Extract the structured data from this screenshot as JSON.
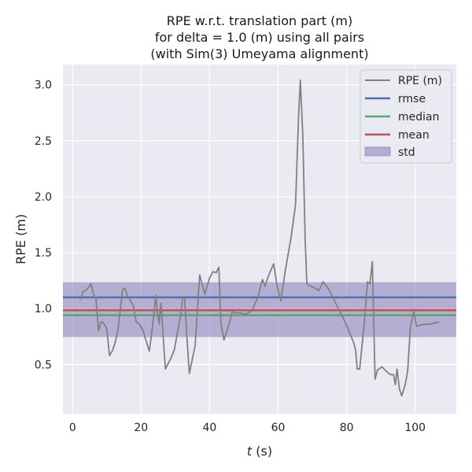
{
  "chart_data": {
    "type": "line",
    "title": [
      "RPE w.r.t. translation part (m)",
      "for delta = 1.0 (m) using all pairs",
      "(with Sim(3) Umeyama alignment)"
    ],
    "xlabel_italic": "t",
    "xlabel_rest": " (s)",
    "ylabel": "RPE (m)",
    "xlim": [
      -2.8,
      112
    ],
    "ylim": [
      0.06,
      3.18
    ],
    "xticks": [
      0,
      20,
      40,
      60,
      80,
      100
    ],
    "xtick_labels": [
      "0",
      "20",
      "40",
      "60",
      "80",
      "100"
    ],
    "yticks": [
      0.5,
      1.0,
      1.5,
      2.0,
      2.5,
      3.0
    ],
    "ytick_labels": [
      "0.5",
      "1.0",
      "1.5",
      "2.0",
      "2.5",
      "3.0"
    ],
    "grid": true,
    "legend_position": "top-right",
    "legend": [
      {
        "label": "RPE (m)",
        "kind": "line",
        "color": "#808080"
      },
      {
        "label": "rmse",
        "kind": "line",
        "color": "#4c72b0"
      },
      {
        "label": "median",
        "kind": "line",
        "color": "#55a868"
      },
      {
        "label": "mean",
        "kind": "line",
        "color": "#c44e52"
      },
      {
        "label": "std",
        "kind": "patch",
        "color": "#8172b2"
      }
    ],
    "stats": {
      "rmse": 1.1,
      "median": 0.94,
      "mean": 0.985,
      "std_low": 0.745,
      "std_high": 1.235
    },
    "series": [
      {
        "name": "RPE (m)",
        "color": "#808080",
        "x": [
          2.2,
          3.1,
          4.2,
          5.4,
          6.2,
          6.8,
          7.6,
          8.3,
          9.1,
          10.0,
          10.8,
          11.6,
          12.4,
          13.2,
          14.0,
          14.6,
          15.3,
          16.2,
          17.1,
          17.8,
          18.6,
          19.6,
          20.6,
          21.5,
          22.4,
          23.4,
          24.3,
          24.8,
          25.3,
          25.8,
          27.1,
          28.6,
          29.7,
          30.7,
          31.6,
          32.2,
          32.7,
          33.4,
          34.1,
          35.8,
          37.1,
          38.6,
          40.1,
          41.0,
          41.9,
          42.7,
          43.3,
          44.2,
          45.3,
          46.6,
          47.8,
          48.9,
          50.6,
          52.3,
          54.1,
          55.4,
          56.2,
          57.0,
          58.7,
          59.6,
          60.8,
          62.1,
          63.8,
          65.1,
          66.0,
          66.5,
          67.2,
          67.9,
          68.4,
          69.6,
          70.9,
          71.9,
          73.1,
          74.8,
          76.6,
          78.6,
          80.4,
          82.1,
          82.6,
          83.1,
          83.8,
          85.1,
          86.1,
          86.8,
          87.5,
          88.3,
          89.0,
          90.3,
          91.6,
          92.8,
          93.7,
          94.2,
          94.7,
          95.4,
          96.1,
          97.1,
          97.8,
          98.6,
          99.6,
          100.4,
          101.2,
          102.6,
          104.1,
          105.6,
          107.0
        ],
        "y": [
          1.08,
          1.15,
          1.17,
          1.22,
          1.12,
          1.1,
          0.8,
          0.88,
          0.87,
          0.82,
          0.58,
          0.62,
          0.69,
          0.8,
          1.0,
          1.17,
          1.18,
          1.1,
          1.06,
          1.02,
          0.88,
          0.86,
          0.8,
          0.71,
          0.62,
          0.85,
          1.12,
          0.96,
          0.86,
          1.05,
          0.46,
          0.55,
          0.63,
          0.8,
          0.95,
          1.1,
          1.11,
          0.73,
          0.42,
          0.67,
          1.3,
          1.13,
          1.28,
          1.33,
          1.32,
          1.37,
          0.87,
          0.72,
          0.82,
          0.97,
          0.96,
          0.96,
          0.95,
          0.98,
          1.1,
          1.26,
          1.2,
          1.28,
          1.4,
          1.22,
          1.07,
          1.34,
          1.64,
          1.93,
          2.75,
          3.04,
          2.55,
          1.62,
          1.22,
          1.2,
          1.18,
          1.16,
          1.24,
          1.17,
          1.06,
          0.94,
          0.82,
          0.69,
          0.63,
          0.46,
          0.46,
          0.85,
          1.24,
          1.22,
          1.42,
          0.37,
          0.45,
          0.48,
          0.44,
          0.41,
          0.41,
          0.32,
          0.46,
          0.28,
          0.22,
          0.32,
          0.44,
          0.83,
          0.98,
          0.84,
          0.85,
          0.86,
          0.86,
          0.87,
          0.88
        ]
      }
    ]
  }
}
